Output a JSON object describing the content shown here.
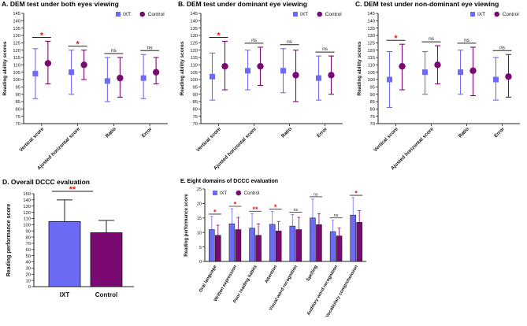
{
  "colors": {
    "ixt": "#6b6bf5",
    "control": "#7a0a72",
    "sig": "#e0201b",
    "axis": "#222222",
    "text": "#111111"
  },
  "chart_data": [
    {
      "type": "scatter",
      "panel": "A",
      "title": "A. DEM test under both eyes viewing",
      "xlabel": "",
      "ylabel": "Reading ability scores",
      "ylim": [
        70,
        145
      ],
      "yticks": [
        70,
        75,
        80,
        85,
        90,
        95,
        100,
        105,
        110,
        115,
        120,
        125,
        130,
        135,
        140,
        145
      ],
      "categories": [
        "Vertical score",
        "Ajusted horizontal score",
        "Ratio",
        "Error"
      ],
      "legend": [
        "IXT",
        "Control"
      ],
      "legend_position": "top-right",
      "series": [
        {
          "name": "IXT",
          "mean": [
            104,
            105,
            99,
            101
          ],
          "err_low": [
            87,
            90,
            85,
            87
          ],
          "err_high": [
            121,
            120,
            115,
            117
          ]
        },
        {
          "name": "Control",
          "mean": [
            111,
            110,
            101,
            105
          ],
          "err_low": [
            97,
            100,
            88,
            97
          ],
          "err_high": [
            126,
            120,
            115,
            115
          ]
        }
      ],
      "significance": [
        "*",
        "*",
        "ns",
        "ns"
      ]
    },
    {
      "type": "scatter",
      "panel": "B",
      "title": "B. DEM test under dominant eye viewing",
      "xlabel": "",
      "ylabel": "Reading ability scores",
      "ylim": [
        70,
        145
      ],
      "yticks": [
        70,
        75,
        80,
        85,
        90,
        95,
        100,
        105,
        110,
        115,
        120,
        125,
        130,
        135,
        140,
        145
      ],
      "categories": [
        "Vertical score",
        "Ajusted horizontal score",
        "Ratio",
        "Error"
      ],
      "legend": [
        "IXT",
        "Control"
      ],
      "legend_position": "top-right",
      "series": [
        {
          "name": "IXT",
          "mean": [
            102,
            106,
            106,
            101
          ],
          "err_low": [
            86,
            93,
            91,
            86
          ],
          "err_high": [
            118,
            120,
            121,
            116
          ]
        },
        {
          "name": "Control",
          "mean": [
            109,
            109,
            103,
            103
          ],
          "err_low": [
            93,
            96,
            85,
            90
          ],
          "err_high": [
            126,
            122,
            120,
            116
          ]
        }
      ],
      "significance": [
        "*",
        "ns",
        "ns",
        "ns"
      ]
    },
    {
      "type": "scatter",
      "panel": "C",
      "title": "C. DEM test under non-dominant eye viewing",
      "xlabel": "",
      "ylabel": "Reading ability scores",
      "ylim": [
        70,
        145
      ],
      "yticks": [
        70,
        75,
        80,
        85,
        90,
        95,
        100,
        105,
        110,
        115,
        120,
        125,
        130,
        135,
        140,
        145
      ],
      "categories": [
        "Vertical score",
        "Ajusted horizontal score",
        "Ratio",
        "Error"
      ],
      "legend": [
        "IXT",
        "Control"
      ],
      "legend_position": "top-right",
      "series": [
        {
          "name": "IXT",
          "mean": [
            100,
            105,
            105,
            100
          ],
          "err_low": [
            81,
            90,
            90,
            86
          ],
          "err_high": [
            119,
            119,
            120,
            115
          ]
        },
        {
          "name": "Control",
          "mean": [
            109,
            110,
            106,
            102
          ],
          "err_low": [
            93,
            97,
            89,
            88
          ],
          "err_high": [
            124,
            123,
            122,
            117
          ]
        }
      ],
      "significance": [
        "*",
        "ns",
        "ns",
        "ns"
      ]
    },
    {
      "type": "bar",
      "panel": "D",
      "title": "D. Overall DCCC evaluation",
      "xlabel": "",
      "ylabel": "Reading performance score",
      "ylim": [
        0,
        150
      ],
      "yticks": [
        0,
        10,
        20,
        30,
        40,
        50,
        60,
        70,
        80,
        90,
        100,
        110,
        120,
        130,
        140,
        150
      ],
      "categories": [
        "IXT",
        "Control"
      ],
      "values": [
        105,
        87
      ],
      "err_high": [
        140,
        107
      ],
      "significance": "**"
    },
    {
      "type": "bar",
      "panel": "E",
      "title": "E. Eight domains of DCCC evaluation",
      "xlabel": "",
      "ylabel": "Reading performance score",
      "ylim": [
        0,
        25
      ],
      "yticks": [
        0,
        5,
        10,
        15,
        20,
        25
      ],
      "categories": [
        "Oral language",
        "Written expression",
        "Poor reading habits",
        "Attention",
        "Visual word recognition",
        "Spelling",
        "Auditory word recognition",
        "Vocabulary comprehension"
      ],
      "legend": [
        "IXT",
        "Control"
      ],
      "legend_position": "top-left",
      "series": [
        {
          "name": "IXT",
          "values": [
            11,
            13,
            11.5,
            12.8,
            12.2,
            15,
            10.3,
            16
          ],
          "err_high": [
            15.5,
            18.2,
            16.5,
            17.2,
            16.2,
            21.5,
            14.2,
            22
          ]
        },
        {
          "name": "Control",
          "values": [
            9,
            11,
            9,
            10.5,
            11,
            12.7,
            8.8,
            13.5
          ],
          "err_high": [
            12.5,
            15.2,
            13,
            13.8,
            15.2,
            16.5,
            11.5,
            17.5
          ]
        }
      ],
      "significance": [
        "*",
        "*",
        "**",
        "*",
        "ns",
        "ns",
        "ns",
        "*"
      ]
    }
  ]
}
